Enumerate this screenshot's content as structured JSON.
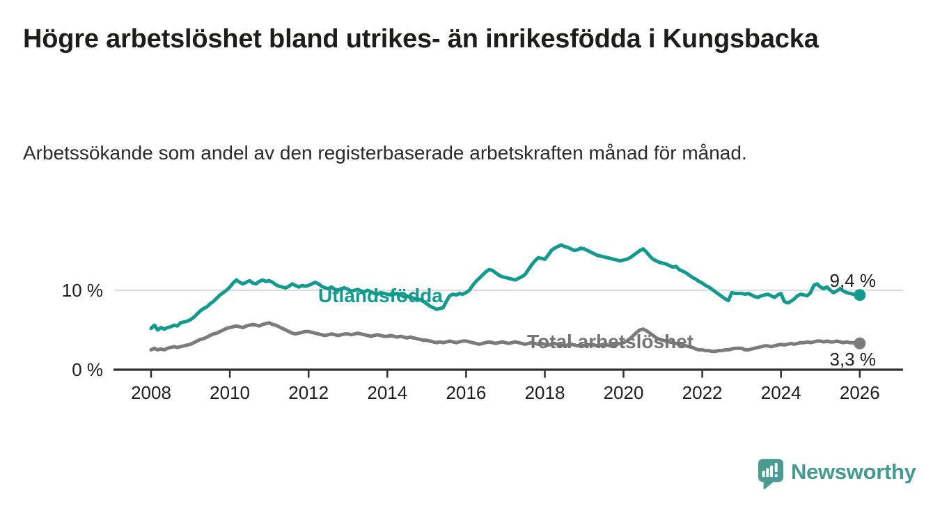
{
  "header": {
    "title": "Högre arbetslöshet bland utrikes- än inrikesfödda i Kungsbacka",
    "subtitle": "Arbetssökande som andel av den registerbaserade arbetskraften månad för månad."
  },
  "branding": {
    "logo_text": "Newsworthy",
    "logo_icon": "bar-chart-speech-bubble-icon",
    "logo_color": "#4a9c93"
  },
  "chart_data": {
    "type": "line",
    "x_unit": "year-month",
    "x_start_year": 2008,
    "x_step_months": 1,
    "xlim": [
      2007.08,
      2027.1
    ],
    "ylim": [
      0,
      16.3
    ],
    "grid": "horizontal-only",
    "gridlines": [
      10
    ],
    "legend_position": "inline-labels-on-lines",
    "yticks": [
      {
        "value": 0,
        "label": "0 %"
      },
      {
        "value": 10,
        "label": "10 %"
      }
    ],
    "xticks": [
      2008,
      2010,
      2012,
      2014,
      2016,
      2018,
      2020,
      2022,
      2024,
      2026
    ],
    "colors": {
      "accent_teal": "#129a8e",
      "line_gray": "#7b7b7b",
      "label_gray": "#757577",
      "axis": "#2f2f2f",
      "text": "#1d1d1b",
      "grid": "#dadada"
    },
    "series": [
      {
        "id": "utlandsfodda",
        "label": "Utlandsfödda",
        "color": "#129a8e",
        "end_label": "9,4 %",
        "last_value": 9.4,
        "values": [
          5.2,
          5.6,
          5.0,
          5.3,
          5.1,
          5.3,
          5.4,
          5.6,
          5.5,
          5.9,
          6.0,
          6.1,
          6.3,
          6.6,
          7.0,
          7.4,
          7.7,
          7.9,
          8.3,
          8.6,
          9.0,
          9.4,
          9.7,
          10.0,
          10.4,
          10.9,
          11.3,
          11.0,
          10.8,
          11.0,
          11.2,
          10.9,
          10.8,
          11.1,
          11.3,
          11.1,
          11.2,
          11.0,
          10.7,
          10.5,
          10.4,
          10.3,
          10.5,
          10.8,
          10.6,
          10.4,
          10.6,
          10.5,
          10.6,
          10.8,
          11.0,
          10.8,
          10.5,
          10.3,
          10.2,
          10.4,
          10.1,
          10.0,
          10.2,
          10.3,
          10.1,
          9.9,
          10.0,
          10.1,
          9.9,
          9.8,
          10.0,
          9.8,
          9.6,
          9.5,
          9.7,
          9.6,
          9.5,
          9.4,
          9.5,
          9.6,
          9.4,
          9.2,
          9.3,
          9.1,
          9.0,
          8.9,
          8.8,
          8.6,
          8.3,
          8.0,
          7.8,
          7.6,
          7.7,
          7.8,
          8.6,
          9.3,
          9.5,
          9.4,
          9.6,
          9.5,
          9.7,
          10.0,
          10.6,
          11.1,
          11.5,
          11.9,
          12.3,
          12.6,
          12.5,
          12.2,
          11.9,
          11.7,
          11.6,
          11.5,
          11.4,
          11.3,
          11.5,
          11.7,
          12.0,
          12.6,
          13.2,
          13.7,
          14.1,
          14.0,
          13.9,
          14.4,
          15.0,
          15.3,
          15.5,
          15.7,
          15.5,
          15.4,
          15.2,
          15.0,
          15.1,
          15.3,
          15.2,
          15.0,
          14.8,
          14.6,
          14.4,
          14.3,
          14.2,
          14.1,
          14.0,
          13.9,
          13.8,
          13.7,
          13.8,
          13.9,
          14.1,
          14.4,
          14.7,
          15.0,
          15.2,
          14.8,
          14.3,
          13.9,
          13.7,
          13.5,
          13.4,
          13.3,
          13.1,
          12.9,
          13.0,
          12.6,
          12.4,
          12.2,
          11.9,
          11.6,
          11.4,
          11.1,
          10.9,
          10.6,
          10.4,
          10.1,
          9.8,
          9.5,
          9.2,
          8.9,
          8.7,
          9.7,
          9.6,
          9.6,
          9.6,
          9.5,
          9.6,
          9.4,
          9.2,
          9.1,
          9.3,
          9.4,
          9.5,
          9.3,
          9.1,
          9.4,
          9.6,
          8.6,
          8.4,
          8.6,
          8.9,
          9.3,
          9.5,
          9.4,
          9.3,
          9.7,
          10.6,
          10.8,
          10.4,
          10.2,
          10.4,
          10.0,
          9.7,
          9.9,
          10.2,
          9.9,
          9.7,
          9.6,
          9.5,
          9.5,
          9.4
        ]
      },
      {
        "id": "total-arbetsloshet",
        "label": "Total arbetslöshet",
        "color": "#7b7b7b",
        "end_label": "3,3 %",
        "last_value": 3.3,
        "values": [
          2.5,
          2.7,
          2.5,
          2.6,
          2.5,
          2.7,
          2.8,
          2.9,
          2.8,
          2.9,
          3.0,
          3.1,
          3.2,
          3.4,
          3.6,
          3.8,
          3.9,
          4.1,
          4.3,
          4.5,
          4.6,
          4.8,
          5.0,
          5.2,
          5.3,
          5.4,
          5.5,
          5.4,
          5.3,
          5.5,
          5.6,
          5.7,
          5.6,
          5.5,
          5.7,
          5.8,
          5.9,
          5.7,
          5.6,
          5.4,
          5.2,
          5.0,
          4.8,
          4.6,
          4.5,
          4.6,
          4.7,
          4.8,
          4.8,
          4.7,
          4.6,
          4.5,
          4.4,
          4.3,
          4.4,
          4.5,
          4.4,
          4.3,
          4.4,
          4.5,
          4.5,
          4.4,
          4.5,
          4.6,
          4.5,
          4.4,
          4.3,
          4.2,
          4.3,
          4.4,
          4.3,
          4.2,
          4.2,
          4.3,
          4.2,
          4.1,
          4.2,
          4.1,
          4.0,
          4.1,
          4.0,
          3.9,
          3.8,
          3.7,
          3.7,
          3.6,
          3.5,
          3.4,
          3.5,
          3.4,
          3.5,
          3.6,
          3.5,
          3.4,
          3.5,
          3.6,
          3.6,
          3.5,
          3.4,
          3.3,
          3.2,
          3.3,
          3.4,
          3.5,
          3.4,
          3.3,
          3.4,
          3.5,
          3.4,
          3.3,
          3.4,
          3.5,
          3.4,
          3.3,
          3.2,
          3.3,
          3.4,
          3.3,
          3.2,
          3.3,
          3.2,
          3.1,
          3.2,
          3.3,
          3.2,
          3.1,
          3.0,
          3.1,
          3.2,
          3.1,
          3.0,
          3.1,
          3.0,
          3.1,
          3.2,
          3.1,
          3.0,
          3.1,
          3.2,
          3.1,
          3.0,
          3.1,
          3.2,
          3.3,
          3.4,
          3.6,
          3.9,
          4.3,
          4.7,
          5.0,
          5.1,
          4.9,
          4.6,
          4.3,
          4.0,
          3.8,
          3.7,
          3.6,
          3.5,
          3.4,
          3.3,
          3.2,
          3.1,
          3.0,
          2.9,
          2.8,
          2.6,
          2.5,
          2.5,
          2.4,
          2.4,
          2.3,
          2.3,
          2.4,
          2.4,
          2.5,
          2.5,
          2.6,
          2.7,
          2.7,
          2.7,
          2.5,
          2.5,
          2.6,
          2.7,
          2.8,
          2.9,
          3.0,
          3.0,
          2.9,
          3.0,
          3.1,
          3.2,
          3.1,
          3.2,
          3.3,
          3.2,
          3.3,
          3.4,
          3.4,
          3.5,
          3.4,
          3.5,
          3.6,
          3.6,
          3.5,
          3.6,
          3.5,
          3.5,
          3.6,
          3.5,
          3.4,
          3.5,
          3.4,
          3.4,
          3.3,
          3.3
        ]
      }
    ]
  }
}
